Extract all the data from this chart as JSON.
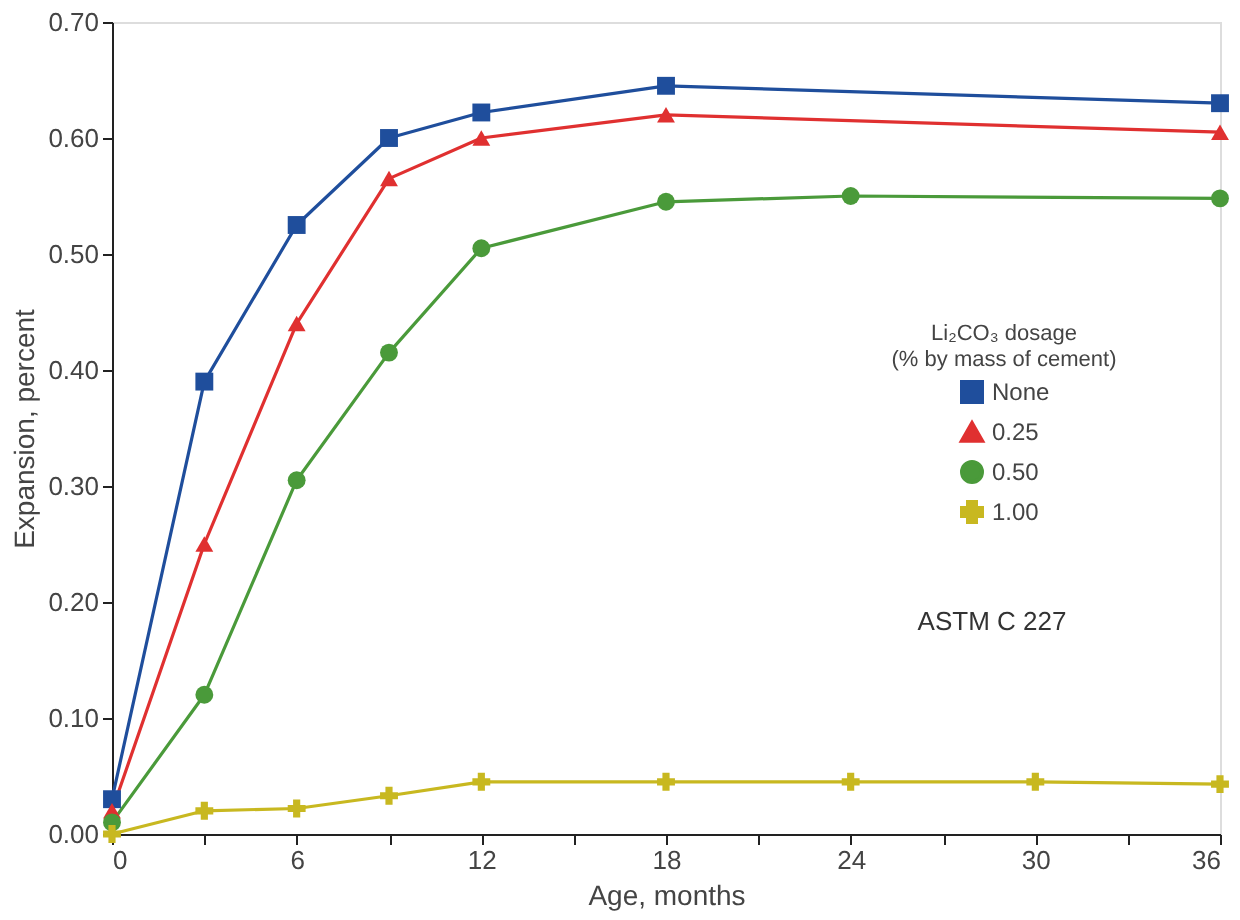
{
  "chart_data": {
    "type": "line",
    "xlabel": "Age, months",
    "ylabel": "Expansion, percent",
    "legend_title": "Li₂CO₃ dosage\n(% by mass of cement)",
    "legend": "right",
    "grid": false,
    "line_style": "solid",
    "annotations": [
      "ASTM C 227"
    ],
    "xlim": [
      0,
      36
    ],
    "ylim": [
      0,
      0.7
    ],
    "xticks": [
      0,
      {
        "value": 3,
        "label": null
      },
      6,
      {
        "value": 9,
        "label": null
      },
      12,
      {
        "value": 15,
        "label": null
      },
      18,
      {
        "value": 21,
        "label": null
      },
      24,
      {
        "value": 27,
        "label": null
      },
      30,
      {
        "value": 33,
        "label": null
      },
      36
    ],
    "yticks": [
      {
        "value": 0,
        "label": "0.00"
      },
      {
        "value": 0.1,
        "label": "0.10"
      },
      {
        "value": 0.2,
        "label": "0.20"
      },
      {
        "value": 0.3,
        "label": "0.30"
      },
      {
        "value": 0.4,
        "label": "0.40"
      },
      {
        "value": 0.5,
        "label": "0.50"
      },
      {
        "value": 0.6,
        "label": "0.60"
      },
      {
        "value": 0.7,
        "label": "0.70"
      }
    ],
    "series": [
      {
        "name": "None",
        "color": "#1f4e9c",
        "marker": "square",
        "x": [
          0,
          3,
          6,
          9,
          12,
          18,
          36
        ],
        "values": [
          0.03,
          0.39,
          0.525,
          0.6,
          0.622,
          0.645,
          0.63
        ]
      },
      {
        "name": "0.25",
        "color": "#e03030",
        "marker": "triangle",
        "x": [
          0,
          3,
          6,
          9,
          12,
          18,
          36
        ],
        "values": [
          0.02,
          0.25,
          0.44,
          0.565,
          0.6,
          0.62,
          0.605
        ]
      },
      {
        "name": "0.50",
        "color": "#4a9a3a",
        "marker": "circle",
        "x": [
          0,
          3,
          6,
          9,
          12,
          18,
          24,
          36
        ],
        "values": [
          0.01,
          0.12,
          0.305,
          0.415,
          0.505,
          0.545,
          0.55,
          0.548
        ]
      },
      {
        "name": "1.00",
        "color": "#c8b820",
        "marker": "cross",
        "x": [
          0,
          3,
          6,
          9,
          12,
          18,
          24,
          30,
          36
        ],
        "values": [
          0.0,
          0.02,
          0.022,
          0.033,
          0.045,
          0.045,
          0.045,
          0.045,
          0.043
        ]
      }
    ]
  }
}
